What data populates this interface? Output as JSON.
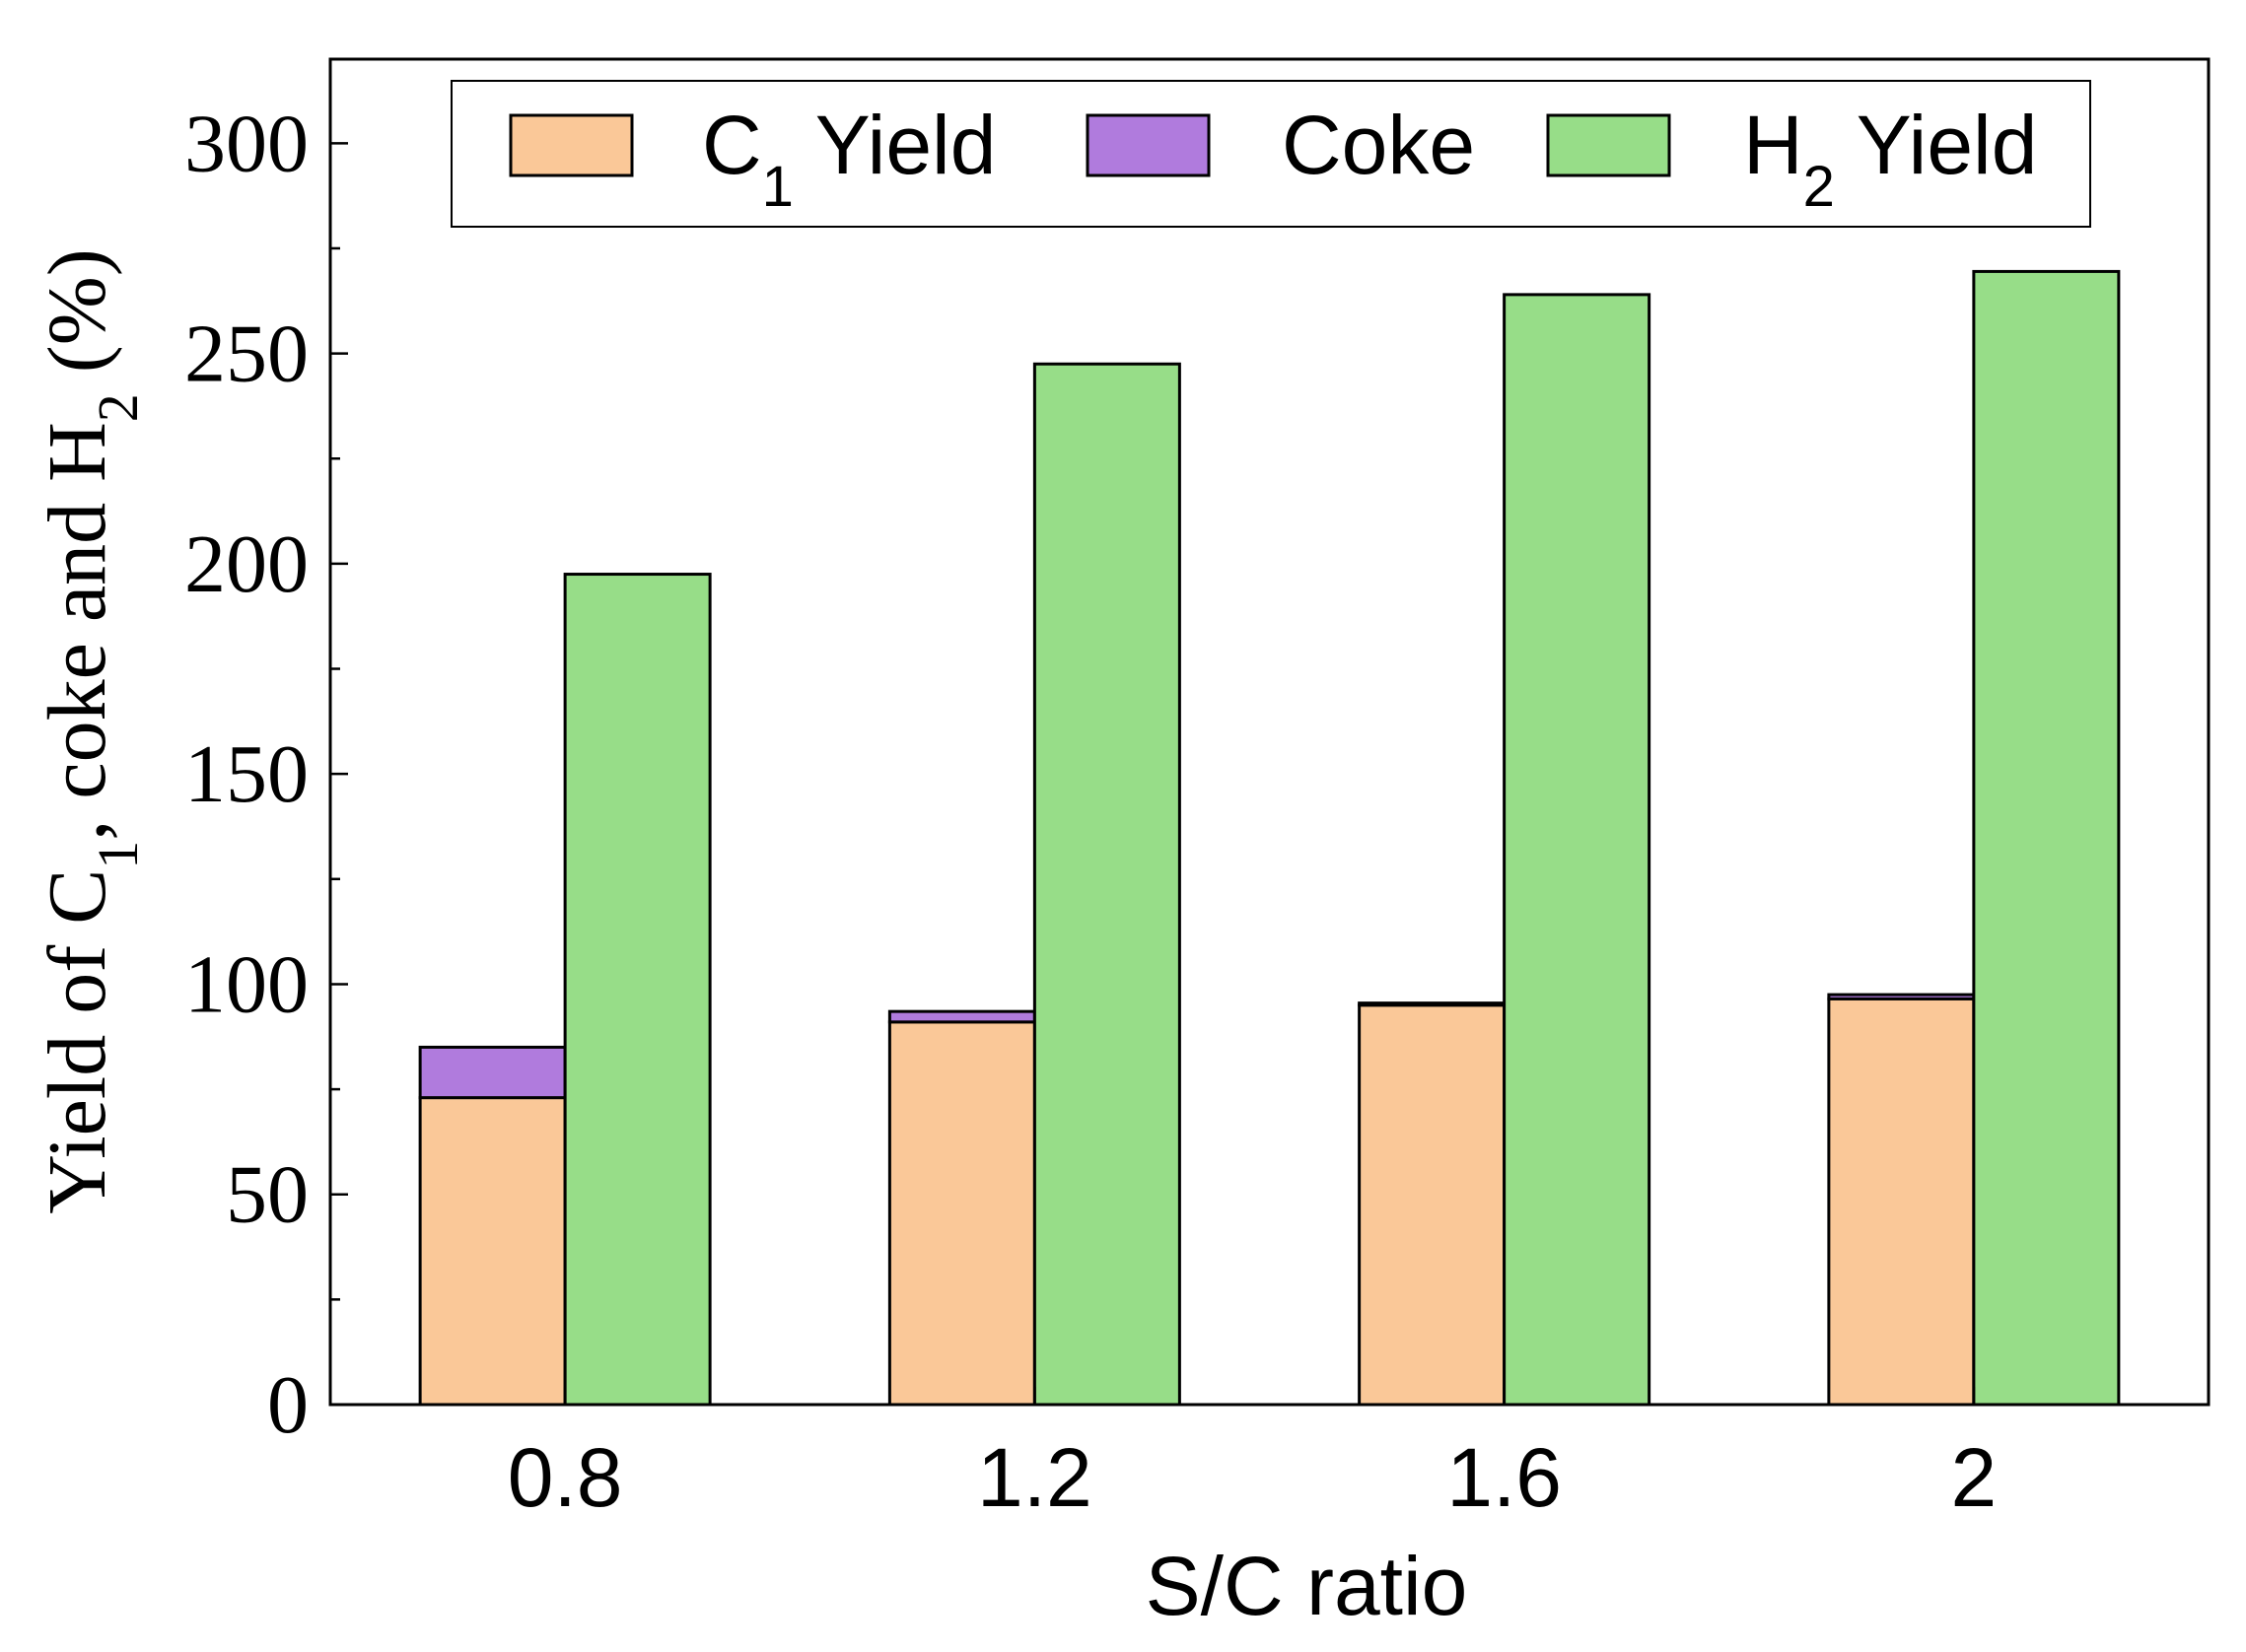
{
  "chart_data": {
    "type": "bar",
    "stacked_groups": true,
    "categories": [
      "0.8",
      "1.2",
      "1.6",
      "2"
    ],
    "series": [
      {
        "name": "C1 Yield",
        "legend_main": "C",
        "legend_sub": "1",
        "legend_after": " Yield",
        "color": "#FAC898",
        "stack": "left",
        "values": [
          73,
          91,
          95,
          96.5
        ]
      },
      {
        "name": "Coke",
        "legend_main": "Coke",
        "legend_sub": "",
        "legend_after": "",
        "color": "#B07BDD",
        "stack": "left",
        "values": [
          12,
          2.5,
          0.5,
          1
        ]
      },
      {
        "name": "H2 Yield",
        "legend_main": "H",
        "legend_sub": "2",
        "legend_after": " Yield",
        "color": "#97DD88",
        "stack": "right",
        "values": [
          197.5,
          247.5,
          264,
          269.5
        ]
      }
    ],
    "xlabel": "S/C ratio",
    "ylabel": {
      "p1": "Yield of C",
      "s1": "1",
      "p2": ", coke and H",
      "s2": "2",
      "p3": " (%)"
    },
    "ylim": [
      0,
      320
    ],
    "yticks": [
      0,
      50,
      100,
      150,
      200,
      250,
      300
    ],
    "legend_position": "top"
  }
}
